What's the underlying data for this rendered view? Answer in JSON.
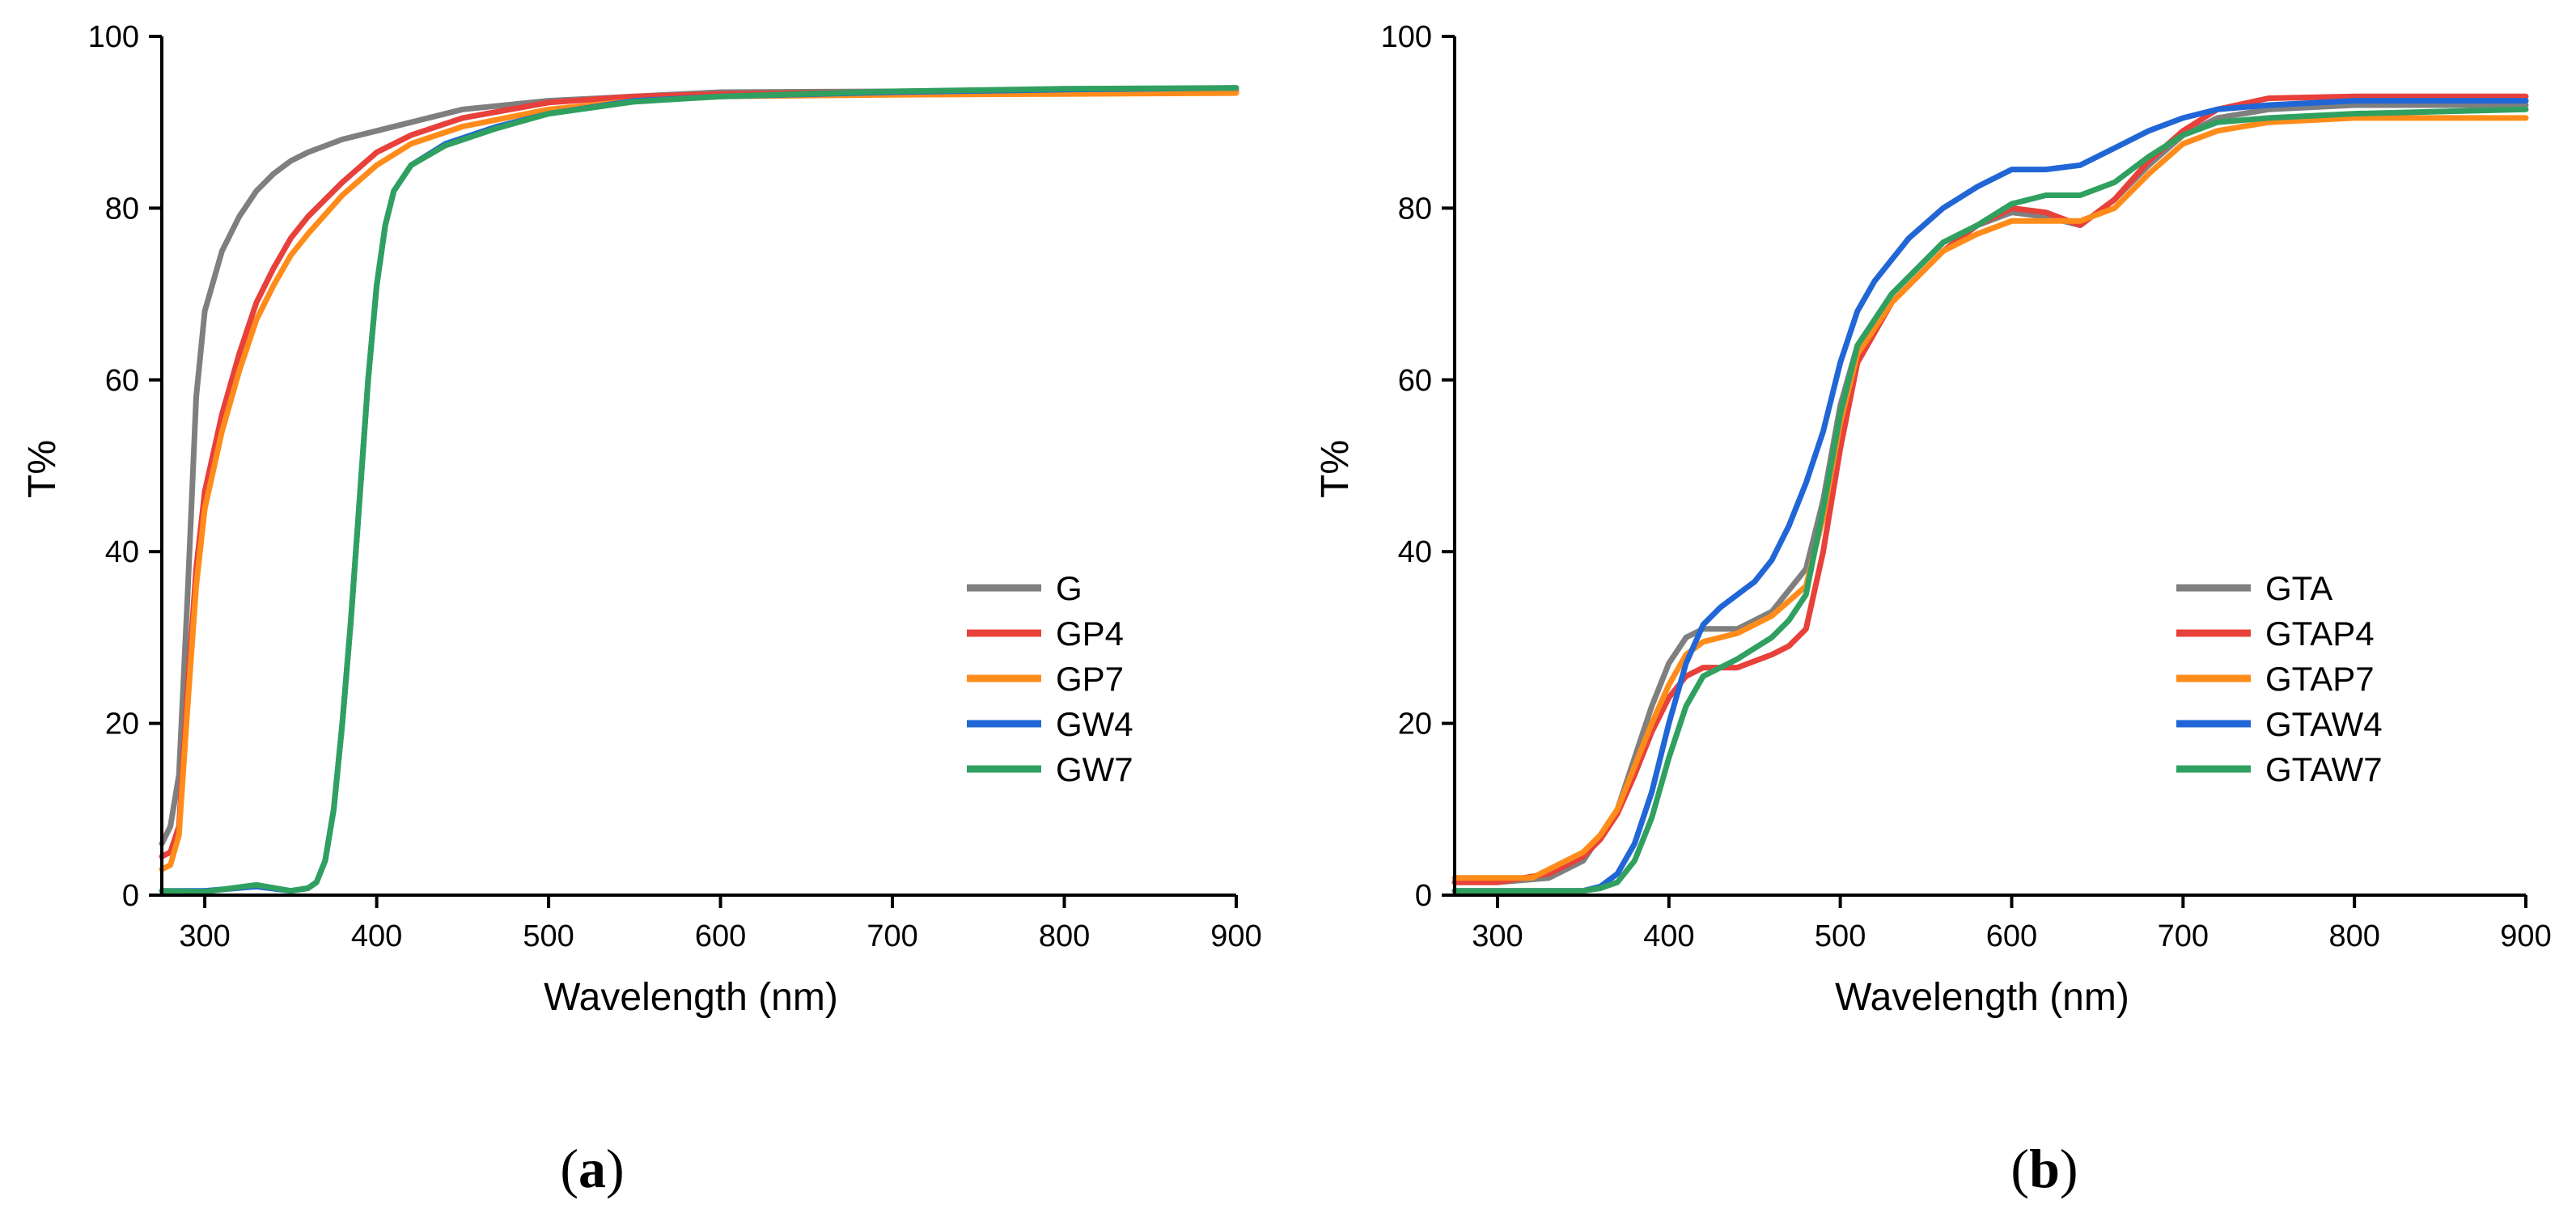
{
  "chart_data": [
    {
      "panel_label_open": "(",
      "panel_label": "a",
      "panel_label_close": ")",
      "type": "line",
      "title": "",
      "xlabel": "Wavelength (nm)",
      "ylabel": "T%",
      "xlim": [
        275,
        900
      ],
      "ylim": [
        0,
        100
      ],
      "xticks": [
        300,
        400,
        500,
        600,
        700,
        800,
        900
      ],
      "yticks": [
        0,
        20,
        40,
        60,
        80,
        100
      ],
      "legend_position": "bottom-right",
      "series": [
        {
          "name": "G",
          "color": "#7f7f7f",
          "x": [
            275,
            280,
            285,
            290,
            295,
            300,
            310,
            320,
            330,
            340,
            350,
            360,
            380,
            400,
            420,
            450,
            500,
            550,
            600,
            700,
            800,
            900
          ],
          "y": [
            6,
            8,
            14,
            35,
            58,
            68,
            75,
            79,
            82,
            84,
            85.5,
            86.5,
            88,
            89,
            90,
            91.5,
            92.5,
            93,
            93.5,
            93.6,
            93.7,
            93.8
          ]
        },
        {
          "name": "GP4",
          "color": "#e8403a",
          "x": [
            275,
            280,
            285,
            290,
            295,
            300,
            310,
            320,
            330,
            340,
            350,
            360,
            380,
            400,
            420,
            450,
            500,
            550,
            600,
            700,
            800,
            900
          ],
          "y": [
            4.5,
            5,
            8,
            24,
            38,
            47,
            56,
            63,
            69,
            73,
            76.5,
            79,
            83,
            86.5,
            88.5,
            90.5,
            92.3,
            93,
            93.3,
            93.5,
            93.5,
            93.6
          ]
        },
        {
          "name": "GP7",
          "color": "#ff8c1a",
          "x": [
            275,
            280,
            285,
            290,
            295,
            300,
            310,
            320,
            330,
            340,
            350,
            360,
            380,
            400,
            420,
            450,
            500,
            550,
            600,
            700,
            800,
            900
          ],
          "y": [
            3,
            3.5,
            7,
            22,
            36,
            45,
            54,
            61,
            67,
            71,
            74.5,
            77,
            81.5,
            85,
            87.5,
            89.5,
            91.5,
            92.5,
            93,
            93.2,
            93.3,
            93.4
          ]
        },
        {
          "name": "GW4",
          "color": "#2166d6",
          "x": [
            275,
            300,
            330,
            350,
            360,
            365,
            370,
            375,
            380,
            385,
            390,
            395,
            400,
            405,
            410,
            420,
            440,
            470,
            500,
            550,
            600,
            700,
            800,
            900
          ],
          "y": [
            0.5,
            0.5,
            1,
            0.5,
            0.8,
            1.5,
            4,
            10,
            20,
            32,
            46,
            60,
            71,
            78,
            82,
            85,
            87.5,
            89.5,
            91,
            92.5,
            93,
            93.5,
            93.8,
            94
          ]
        },
        {
          "name": "GW7",
          "color": "#30a060",
          "x": [
            275,
            300,
            330,
            350,
            360,
            365,
            370,
            375,
            380,
            385,
            390,
            395,
            400,
            405,
            410,
            420,
            440,
            470,
            500,
            550,
            600,
            700,
            800,
            900
          ],
          "y": [
            0.5,
            0.4,
            1.2,
            0.5,
            0.8,
            1.5,
            4,
            10,
            20,
            32,
            46,
            60,
            71,
            78,
            82,
            85,
            87.3,
            89.3,
            91,
            92.4,
            93,
            93.6,
            93.9,
            94
          ]
        }
      ]
    },
    {
      "panel_label_open": "(",
      "panel_label": "b",
      "panel_label_close": ")",
      "type": "line",
      "title": "",
      "xlabel": "Wavelength (nm)",
      "ylabel": "T%",
      "xlim": [
        275,
        900
      ],
      "ylim": [
        0,
        100
      ],
      "xticks": [
        300,
        400,
        500,
        600,
        700,
        800,
        900
      ],
      "yticks": [
        0,
        20,
        40,
        60,
        80,
        100
      ],
      "legend_position": "bottom-right",
      "series": [
        {
          "name": "GTA",
          "color": "#7f7f7f",
          "x": [
            275,
            300,
            330,
            350,
            360,
            370,
            380,
            390,
            400,
            410,
            420,
            440,
            460,
            480,
            490,
            500,
            510,
            530,
            560,
            580,
            600,
            620,
            640,
            660,
            680,
            700,
            720,
            750,
            800,
            900
          ],
          "y": [
            1.5,
            1.5,
            2,
            4,
            7,
            10,
            16,
            22,
            27,
            30,
            31,
            31,
            33,
            38,
            46,
            57,
            64,
            70,
            76,
            78,
            79.5,
            79,
            78,
            81,
            85,
            88.5,
            90.5,
            91.5,
            92,
            92
          ]
        },
        {
          "name": "GTAP4",
          "color": "#e8403a",
          "x": [
            275,
            300,
            330,
            350,
            360,
            370,
            380,
            390,
            400,
            410,
            420,
            440,
            460,
            470,
            480,
            490,
            500,
            510,
            530,
            560,
            580,
            600,
            620,
            640,
            660,
            680,
            700,
            720,
            750,
            800,
            900
          ],
          "y": [
            1.5,
            1.5,
            2.5,
            4.5,
            6.5,
            9.5,
            14,
            19,
            23,
            25.5,
            26.5,
            26.5,
            28,
            29,
            31,
            40,
            52,
            62,
            69,
            75,
            78,
            80,
            79.5,
            78,
            81,
            85.5,
            89,
            91.5,
            92.8,
            93,
            93
          ]
        },
        {
          "name": "GTAP7",
          "color": "#ff8c1a",
          "x": [
            275,
            300,
            320,
            340,
            350,
            360,
            370,
            380,
            390,
            400,
            410,
            420,
            440,
            460,
            480,
            490,
            500,
            510,
            530,
            560,
            580,
            600,
            620,
            640,
            660,
            680,
            700,
            720,
            750,
            800,
            900
          ],
          "y": [
            2,
            2,
            2,
            4,
            5,
            7,
            10,
            15,
            20,
            24.5,
            28,
            29.5,
            30.5,
            32.5,
            36,
            44,
            55,
            63,
            69,
            75,
            77,
            78.5,
            78.5,
            78.5,
            80,
            84,
            87.5,
            89,
            90,
            90.5,
            90.5
          ]
        },
        {
          "name": "GTAW4",
          "color": "#2166d6",
          "x": [
            275,
            300,
            340,
            350,
            360,
            370,
            380,
            390,
            400,
            410,
            420,
            430,
            440,
            450,
            460,
            470,
            480,
            490,
            500,
            510,
            520,
            540,
            560,
            580,
            600,
            620,
            640,
            660,
            680,
            700,
            720,
            750,
            800,
            900
          ],
          "y": [
            0.5,
            0.5,
            0.5,
            0.5,
            1,
            2.5,
            6,
            12,
            20,
            27,
            31.5,
            33.5,
            35,
            36.5,
            39,
            43,
            48,
            54,
            62,
            68,
            71.5,
            76.5,
            80,
            82.5,
            84.5,
            84.5,
            85,
            87,
            89,
            90.5,
            91.5,
            92,
            92.5,
            92.5
          ]
        },
        {
          "name": "GTAW7",
          "color": "#30a060",
          "x": [
            275,
            300,
            340,
            350,
            360,
            370,
            380,
            390,
            400,
            410,
            420,
            440,
            460,
            470,
            480,
            490,
            500,
            510,
            530,
            560,
            580,
            600,
            620,
            640,
            660,
            680,
            700,
            720,
            750,
            800,
            900
          ],
          "y": [
            0.5,
            0.5,
            0.5,
            0.5,
            0.8,
            1.5,
            4,
            9,
            16,
            22,
            25.5,
            27.5,
            30,
            32,
            35,
            45,
            56,
            64,
            70,
            76,
            78,
            80.5,
            81.5,
            81.5,
            83,
            86,
            88.5,
            90,
            90.5,
            91,
            91.5
          ]
        }
      ]
    }
  ]
}
